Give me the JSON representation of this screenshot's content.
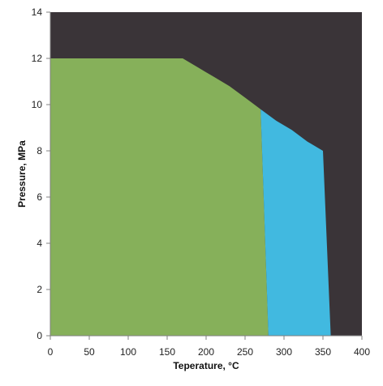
{
  "chart_data": {
    "type": "area",
    "title": "",
    "xlabel": "Teperature, °C",
    "ylabel": "Pressure, MPa",
    "xlim": [
      0,
      400
    ],
    "ylim": [
      0,
      14
    ],
    "x_ticks": [
      0,
      50,
      100,
      150,
      200,
      250,
      300,
      350,
      400
    ],
    "y_ticks": [
      0,
      2,
      4,
      6,
      8,
      10,
      12,
      14
    ],
    "grid": false,
    "legend": "none",
    "background_color": "#3a3438",
    "regions": [
      {
        "color": "#86b05a",
        "points": [
          [
            0,
            0
          ],
          [
            0,
            12
          ],
          [
            170,
            12
          ],
          [
            190,
            11.6
          ],
          [
            210,
            11.2
          ],
          [
            230,
            10.8
          ],
          [
            250,
            10.3
          ],
          [
            270,
            9.8
          ],
          [
            280,
            0
          ]
        ]
      },
      {
        "color": "#41b9e0",
        "points": [
          [
            270,
            9.8
          ],
          [
            290,
            9.3
          ],
          [
            310,
            8.9
          ],
          [
            330,
            8.4
          ],
          [
            350,
            8.0
          ],
          [
            360,
            0
          ],
          [
            280,
            0
          ]
        ]
      }
    ]
  }
}
